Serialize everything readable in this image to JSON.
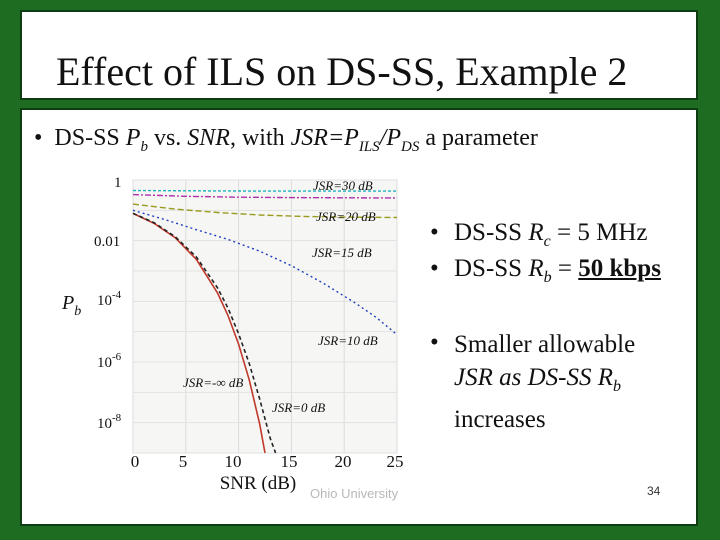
{
  "slide": {
    "title": "Effect of ILS on DS-SS, Example 2",
    "bullet_main": {
      "prefix": "DS-SS ",
      "pb": "P",
      "pb_sub": "b",
      "mid": " vs. ",
      "snr": "SNR",
      "mid2": ", with ",
      "jsr": "JSR=P",
      "ils_sub": "ILS",
      "slash": "/P",
      "ds_sub": "DS",
      "suffix": " a parameter"
    },
    "right_bullets": [
      {
        "pre": "DS-SS ",
        "var": "R",
        "sub": "c",
        "post": " = 5 MHz"
      },
      {
        "pre": "DS-SS ",
        "var": "R",
        "sub": "b",
        "post": " = ",
        "bold": "50 kbps"
      }
    ],
    "note_lines": [
      "Smaller allowable",
      "JSR as DS-SS R",
      "increases"
    ],
    "note_sub": "b",
    "footer": "Ohio University",
    "page_number": "34"
  },
  "chart_data": {
    "type": "line",
    "xlabel": "SNR (dB)",
    "ylabel": "Pb",
    "x_ticks": [
      "0",
      "5",
      "10",
      "15",
      "20",
      "25"
    ],
    "y_ticks": [
      "1",
      "0.01",
      "10-4",
      "10-6",
      "10-8"
    ],
    "xlim": [
      0,
      25
    ],
    "ylim_log10": [
      -9,
      0
    ],
    "grid": true,
    "series": [
      {
        "name": "JSR=-∞ dB",
        "color": "#c0392b",
        "points": [
          [
            0,
            0.079
          ],
          [
            2,
            0.037
          ],
          [
            4,
            0.0125
          ],
          [
            6,
            0.0024
          ],
          [
            8,
            0.00019
          ],
          [
            9,
            3.4e-05
          ],
          [
            10,
            3.9e-06
          ],
          [
            11,
            2.6e-07
          ],
          [
            12,
            9e-09
          ],
          [
            12.5,
            1e-09
          ]
        ]
      },
      {
        "name": "JSR=0 dB",
        "color": "#222222",
        "dash": "4,3",
        "points": [
          [
            0,
            0.08
          ],
          [
            2,
            0.039
          ],
          [
            4,
            0.0135
          ],
          [
            6,
            0.0029
          ],
          [
            8,
            0.00028
          ],
          [
            9,
            6e-05
          ],
          [
            10,
            8.5e-06
          ],
          [
            11,
            9e-07
          ],
          [
            12,
            6e-08
          ],
          [
            13,
            3e-09
          ],
          [
            13.5,
            1e-09
          ]
        ]
      },
      {
        "name": "JSR=10 dB",
        "color": "#1f3fbf",
        "dash": "2,3",
        "points": [
          [
            0,
            0.1
          ],
          [
            3,
            0.05
          ],
          [
            6,
            0.023
          ],
          [
            9,
            0.011
          ],
          [
            12,
            0.0045
          ],
          [
            15,
            0.0015
          ],
          [
            18,
            0.0004
          ],
          [
            21,
            9e-05
          ],
          [
            23,
            3e-05
          ],
          [
            25,
            8e-06
          ]
        ]
      },
      {
        "name": "JSR=15 dB",
        "color": "#9a9a20",
        "dash": "6,3",
        "points": [
          [
            0,
            0.16
          ],
          [
            4,
            0.11
          ],
          [
            8,
            0.085
          ],
          [
            12,
            0.07
          ],
          [
            16,
            0.063
          ],
          [
            20,
            0.06
          ],
          [
            25,
            0.058
          ]
        ]
      },
      {
        "name": "JSR=20 dB",
        "color": "#b030b0",
        "dash": "6,2,2,2",
        "points": [
          [
            0,
            0.33
          ],
          [
            5,
            0.29
          ],
          [
            10,
            0.27
          ],
          [
            15,
            0.262
          ],
          [
            20,
            0.258
          ],
          [
            25,
            0.255
          ]
        ]
      },
      {
        "name": "JSR=30 dB",
        "color": "#20b0c0",
        "dash": "3,2",
        "points": [
          [
            0,
            0.45
          ],
          [
            5,
            0.44
          ],
          [
            10,
            0.435
          ],
          [
            15,
            0.432
          ],
          [
            20,
            0.431
          ],
          [
            25,
            0.43
          ]
        ]
      }
    ],
    "annotations": [
      "JSR=30 dB",
      "JSR=20 dB",
      "JSR=15 dB",
      "JSR=10 dB",
      "JSR=-∞ dB",
      "JSR=0 dB"
    ]
  }
}
